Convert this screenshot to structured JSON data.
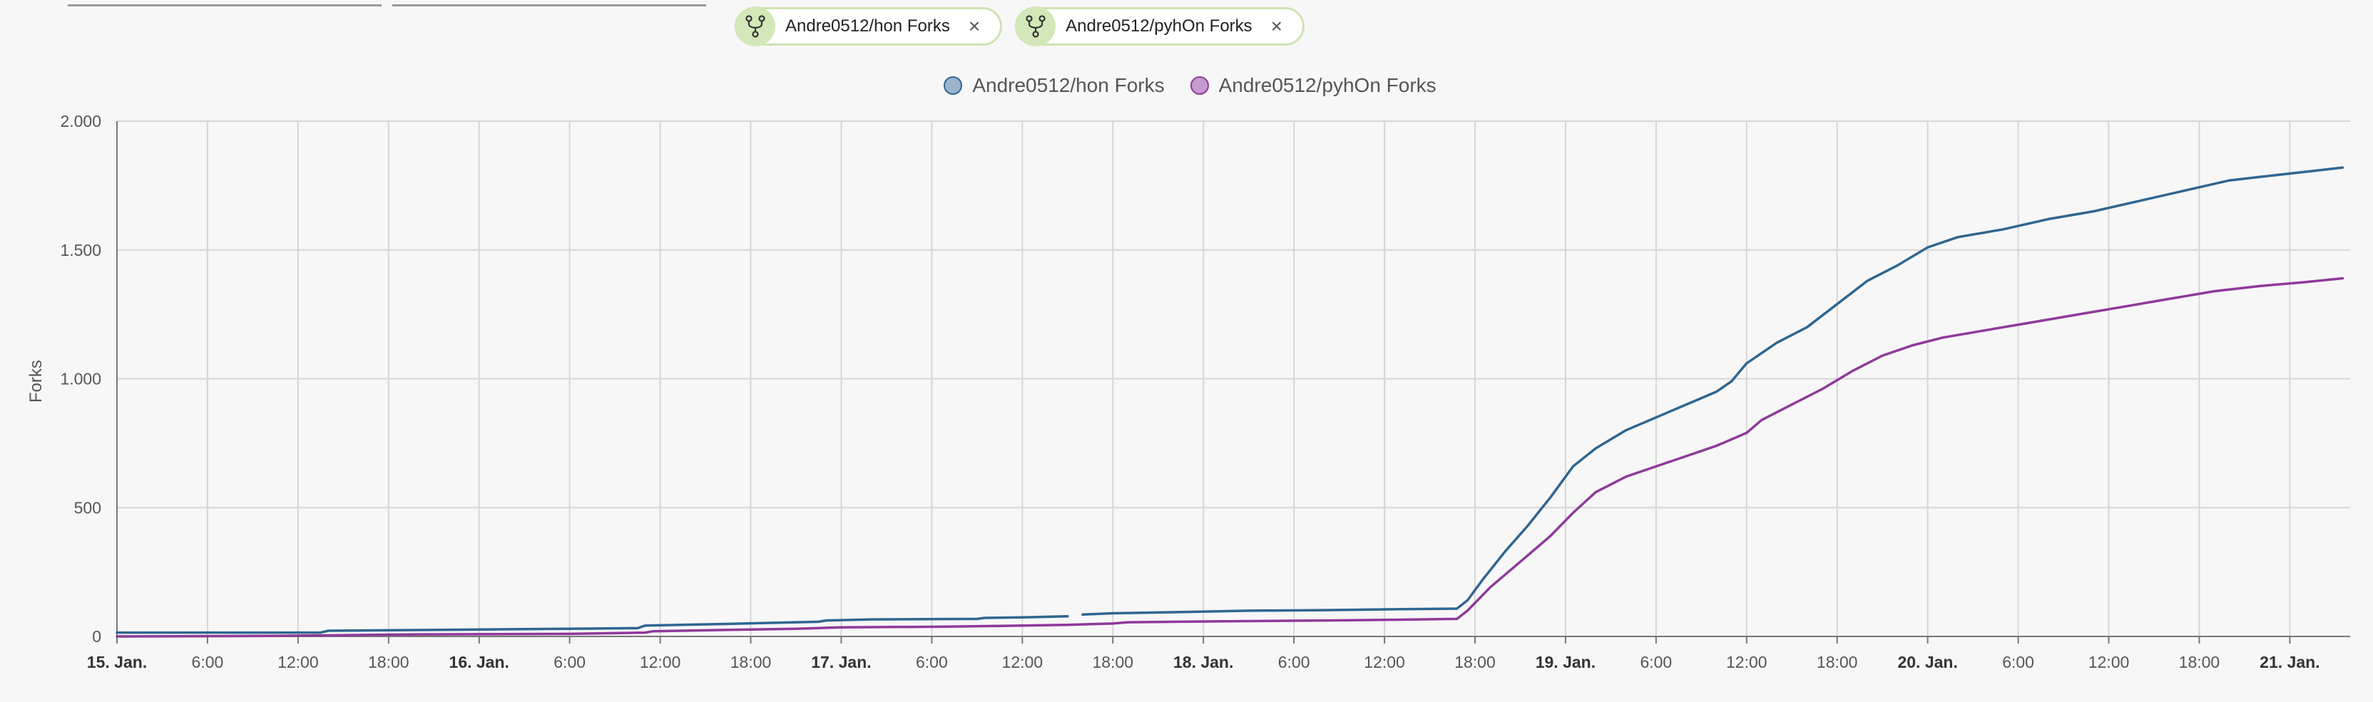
{
  "filters": [
    {
      "label": "Andre0512/hon Forks",
      "icon": "fork-icon"
    },
    {
      "label": "Andre0512/pyhOn Forks",
      "icon": "fork-icon"
    }
  ],
  "close_glyph": "×",
  "colors": {
    "series_hon": "#2f6690",
    "series_pyhon": "#8e3a99",
    "legend_hon_fill": "#9bb4cc",
    "legend_pyhon_fill": "#c79ad0",
    "chip_border": "#cfe3b2",
    "chip_icon_bg": "#d3e8b8",
    "grid": "#d6d6d6"
  },
  "chart_data": {
    "type": "line",
    "title": "",
    "xlabel": "",
    "ylabel": "Forks",
    "ylim": [
      0,
      2000
    ],
    "y_ticks": [
      {
        "value": 0,
        "label": "0"
      },
      {
        "value": 500,
        "label": "500"
      },
      {
        "value": 1000,
        "label": "1.000"
      },
      {
        "value": 1500,
        "label": "1.500"
      },
      {
        "value": 2000,
        "label": "2.000"
      }
    ],
    "x_unit": "hours since 15. Jan. 00:00",
    "xlim": [
      0,
      148
    ],
    "x_ticks": [
      {
        "value": 0,
        "label": "15. Jan.",
        "bold": true
      },
      {
        "value": 6,
        "label": "6:00",
        "bold": false
      },
      {
        "value": 12,
        "label": "12:00",
        "bold": false
      },
      {
        "value": 18,
        "label": "18:00",
        "bold": false
      },
      {
        "value": 24,
        "label": "16. Jan.",
        "bold": true
      },
      {
        "value": 30,
        "label": "6:00",
        "bold": false
      },
      {
        "value": 36,
        "label": "12:00",
        "bold": false
      },
      {
        "value": 42,
        "label": "18:00",
        "bold": false
      },
      {
        "value": 48,
        "label": "17. Jan.",
        "bold": true
      },
      {
        "value": 54,
        "label": "6:00",
        "bold": false
      },
      {
        "value": 60,
        "label": "12:00",
        "bold": false
      },
      {
        "value": 66,
        "label": "18:00",
        "bold": false
      },
      {
        "value": 72,
        "label": "18. Jan.",
        "bold": true
      },
      {
        "value": 78,
        "label": "6:00",
        "bold": false
      },
      {
        "value": 84,
        "label": "12:00",
        "bold": false
      },
      {
        "value": 90,
        "label": "18:00",
        "bold": false
      },
      {
        "value": 96,
        "label": "19. Jan.",
        "bold": true
      },
      {
        "value": 102,
        "label": "6:00",
        "bold": false
      },
      {
        "value": 108,
        "label": "12:00",
        "bold": false
      },
      {
        "value": 114,
        "label": "18:00",
        "bold": false
      },
      {
        "value": 120,
        "label": "20. Jan.",
        "bold": true
      },
      {
        "value": 126,
        "label": "6:00",
        "bold": false
      },
      {
        "value": 132,
        "label": "12:00",
        "bold": false
      },
      {
        "value": 138,
        "label": "18:00",
        "bold": false
      },
      {
        "value": 144,
        "label": "21. Jan.",
        "bold": true
      }
    ],
    "grid": true,
    "legend_position": "top-center",
    "series": [
      {
        "name": "Andre0512/hon Forks",
        "color": "#2f6690",
        "points": [
          [
            0,
            15
          ],
          [
            13.5,
            15
          ],
          [
            14,
            22
          ],
          [
            20,
            25
          ],
          [
            30,
            30
          ],
          [
            34.5,
            32
          ],
          [
            35,
            42
          ],
          [
            40,
            48
          ],
          [
            45,
            55
          ],
          [
            46.5,
            57
          ],
          [
            47,
            62
          ],
          [
            50,
            66
          ],
          [
            57,
            68
          ],
          [
            57.5,
            72
          ],
          [
            60,
            74
          ],
          [
            63,
            78
          ],
          [
            63,
            null
          ],
          [
            64,
            85
          ],
          [
            66,
            90
          ],
          [
            70,
            94
          ],
          [
            75,
            100
          ],
          [
            80,
            102
          ],
          [
            85,
            106
          ],
          [
            88.8,
            108
          ],
          [
            89.5,
            140
          ],
          [
            90.5,
            220
          ],
          [
            92,
            330
          ],
          [
            93.5,
            430
          ],
          [
            95,
            540
          ],
          [
            96.5,
            660
          ],
          [
            98,
            730
          ],
          [
            100,
            800
          ],
          [
            102,
            850
          ],
          [
            104,
            900
          ],
          [
            106,
            950
          ],
          [
            107,
            990
          ],
          [
            108,
            1060
          ],
          [
            110,
            1140
          ],
          [
            112,
            1200
          ],
          [
            114,
            1290
          ],
          [
            116,
            1380
          ],
          [
            118,
            1440
          ],
          [
            120,
            1510
          ],
          [
            122,
            1550
          ],
          [
            125,
            1580
          ],
          [
            128,
            1620
          ],
          [
            131,
            1650
          ],
          [
            134,
            1690
          ],
          [
            137,
            1730
          ],
          [
            140,
            1770
          ],
          [
            143,
            1790
          ],
          [
            146,
            1810
          ],
          [
            147.5,
            1820
          ]
        ]
      },
      {
        "name": "Andre0512/pyhOn Forks",
        "color": "#8e3a99",
        "points": [
          [
            0,
            0
          ],
          [
            10,
            2
          ],
          [
            15,
            5
          ],
          [
            20,
            8
          ],
          [
            30,
            10
          ],
          [
            35,
            15
          ],
          [
            35.5,
            20
          ],
          [
            40,
            25
          ],
          [
            45,
            30
          ],
          [
            48,
            35
          ],
          [
            55,
            38
          ],
          [
            60,
            42
          ],
          [
            63,
            45
          ],
          [
            66,
            50
          ],
          [
            67,
            55
          ],
          [
            72,
            58
          ],
          [
            80,
            62
          ],
          [
            85,
            65
          ],
          [
            88.8,
            68
          ],
          [
            89.5,
            100
          ],
          [
            91,
            190
          ],
          [
            93,
            290
          ],
          [
            95,
            390
          ],
          [
            96.5,
            480
          ],
          [
            98,
            560
          ],
          [
            100,
            620
          ],
          [
            102,
            660
          ],
          [
            104,
            700
          ],
          [
            106,
            740
          ],
          [
            108,
            790
          ],
          [
            109,
            840
          ],
          [
            111,
            900
          ],
          [
            113,
            960
          ],
          [
            115,
            1030
          ],
          [
            117,
            1090
          ],
          [
            119,
            1130
          ],
          [
            121,
            1160
          ],
          [
            124,
            1190
          ],
          [
            127,
            1220
          ],
          [
            130,
            1250
          ],
          [
            133,
            1280
          ],
          [
            136,
            1310
          ],
          [
            139,
            1340
          ],
          [
            142,
            1360
          ],
          [
            145,
            1375
          ],
          [
            147.5,
            1390
          ]
        ]
      }
    ]
  }
}
